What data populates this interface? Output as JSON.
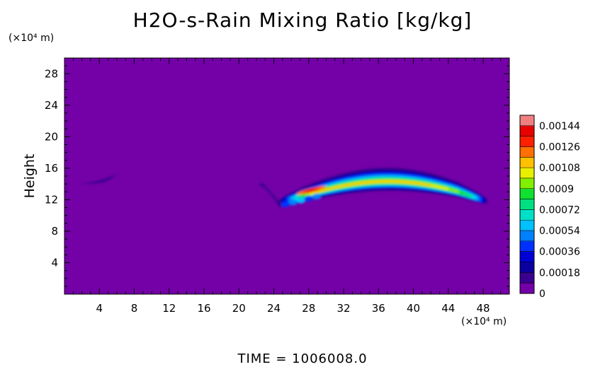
{
  "chart_data": {
    "type": "heatmap",
    "title": "H2O-s-Rain Mixing Ratio [kg/kg]",
    "xlabel": "",
    "ylabel": "Height",
    "x_unit": "(×10⁴ m)",
    "y_unit": "(×10⁴ m)",
    "xlim": [
      0,
      51
    ],
    "ylim": [
      0,
      30
    ],
    "x_ticks": [
      "4",
      "8",
      "12",
      "16",
      "20",
      "24",
      "28",
      "32",
      "36",
      "40",
      "44",
      "48"
    ],
    "y_ticks": [
      "4",
      "8",
      "12",
      "16",
      "20",
      "24",
      "28"
    ],
    "colorbar": {
      "labels": [
        "0",
        "0.00018",
        "0.00036",
        "0.00054",
        "0.00072",
        "0.0009",
        "0.00108",
        "0.00126",
        "0.00144"
      ],
      "range": [
        0,
        0.00153
      ],
      "steps": 17
    },
    "background_value": 0,
    "features": [
      {
        "name": "main band",
        "x_start": 24.5,
        "x_end": 48.5,
        "peak_x": 28,
        "peak_height": 13.2,
        "max_value": 0.00135
      },
      {
        "name": "small patch",
        "x_start": 2,
        "x_end": 6,
        "height": 14.5,
        "max_value": 0.0001
      }
    ],
    "time_label": "TIME = 1006008.0"
  }
}
